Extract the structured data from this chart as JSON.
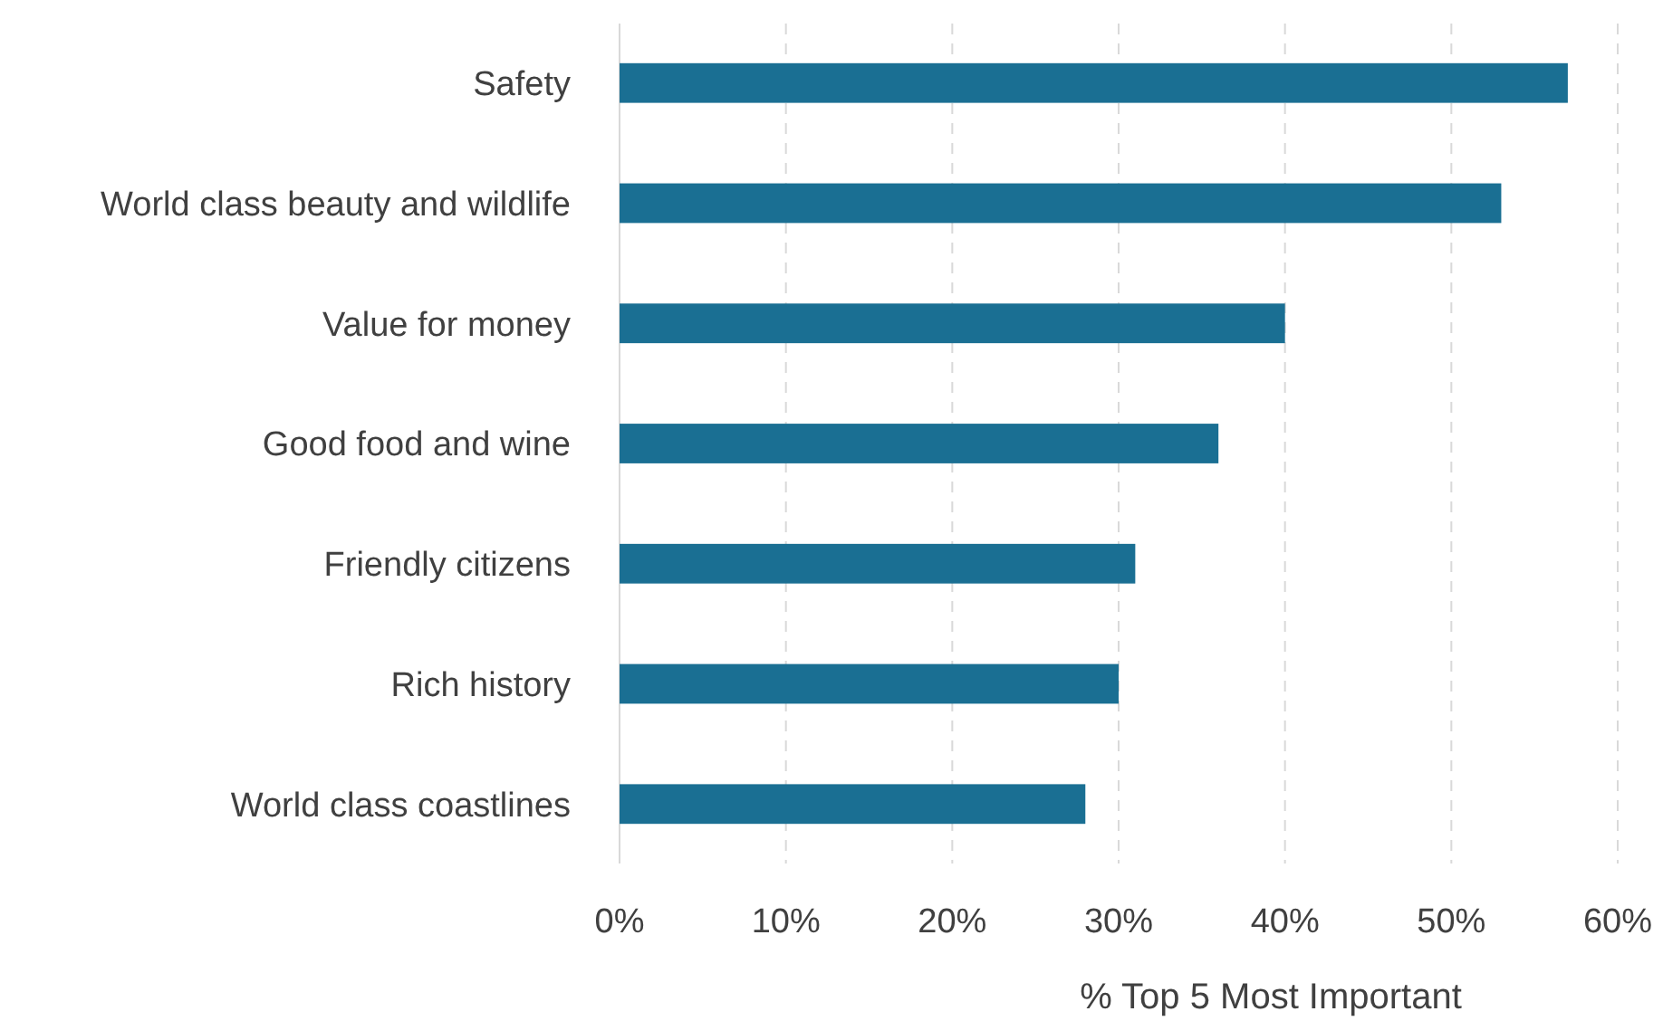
{
  "chart_data": {
    "type": "bar",
    "orientation": "horizontal",
    "xlabel": "% Top 5 Most Important",
    "categories": [
      "Safety",
      "World class beauty and wildlife",
      "Value for money",
      "Good food and wine",
      "Friendly citizens",
      "Rich history",
      "World class coastlines"
    ],
    "values": [
      57,
      53,
      40,
      36,
      31,
      30,
      28
    ],
    "color": "#1a6f93",
    "xlim": [
      0,
      60
    ],
    "xticks": [
      {
        "value": 0,
        "label": "0%"
      },
      {
        "value": 10,
        "label": "10%"
      },
      {
        "value": 20,
        "label": "20%"
      },
      {
        "value": 30,
        "label": "30%"
      },
      {
        "value": 40,
        "label": "40%"
      },
      {
        "value": 50,
        "label": "50%"
      },
      {
        "value": 60,
        "label": "60%"
      }
    ],
    "grid": "x"
  }
}
